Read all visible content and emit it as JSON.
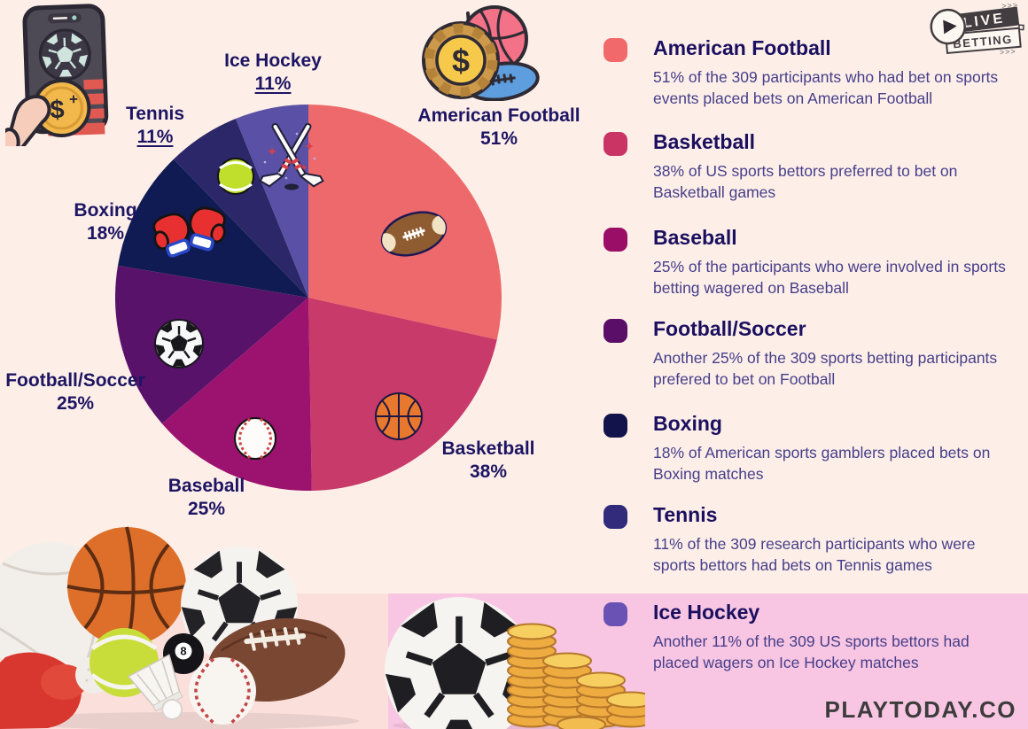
{
  "page": {
    "brand": "PLAYTODAY.CO",
    "colors": {
      "background": "#fdefe8",
      "pink_band": "#f8c6e2",
      "photo_backdrop": "#fbdfdb",
      "heading_text": "#1b1060",
      "body_text": "#453e8a",
      "pie_label_text": "#1d1563",
      "brand_text": "#3c3c3c"
    }
  },
  "badge": {
    "live": "LIVE",
    "betting": "BETTING",
    "arrows_top": ">>>",
    "arrows_bottom": ">>>"
  },
  "decor_text": {
    "chip_symbol": "$",
    "phone_coin_symbol": "$",
    "phone_coin_plus": "+",
    "eight_ball": "8"
  },
  "icons": {
    "decorations": [
      "betting-phone-icon",
      "money-and-balls-icon",
      "live-betting-badge",
      "sports-equipment-photo",
      "soccer-ball-and-coins-photo"
    ],
    "slice_icons": [
      "american-football-icon",
      "basketball-icon",
      "baseball-icon",
      "soccer-ball-icon",
      "boxing-gloves-icon",
      "tennis-ball-icon",
      "ice-hockey-sticks-icon"
    ]
  },
  "chart_data": {
    "type": "pie",
    "value_suffix": "%",
    "slices": [
      {
        "label": "American Football",
        "value": 51,
        "color": "#ee696b",
        "icon": "american-football-icon",
        "underline": false
      },
      {
        "label": "Basketball",
        "value": 38,
        "color": "#c83a69",
        "icon": "basketball-icon",
        "underline": false
      },
      {
        "label": "Baseball",
        "value": 25,
        "color": "#9b136e",
        "icon": "baseball-icon",
        "underline": false
      },
      {
        "label": "Football/Soccer",
        "value": 25,
        "color": "#591269",
        "icon": "soccer-ball-icon",
        "underline": false
      },
      {
        "label": "Boxing",
        "value": 18,
        "color": "#0f1b52",
        "icon": "boxing-gloves-icon",
        "underline": false
      },
      {
        "label": "Tennis",
        "value": 11,
        "color": "#2b2768",
        "icon": "tennis-ball-icon",
        "underline": true
      },
      {
        "label": "Ice Hockey",
        "value": 11,
        "color": "#5a50a5",
        "icon": "ice-hockey-sticks-icon",
        "underline": true
      }
    ]
  },
  "legend": {
    "items": [
      {
        "title": "American Football",
        "swatch_color": "#f1696a",
        "description": "51% of the 309 participants who had bet on sports events placed bets on American Football"
      },
      {
        "title": "Basketball",
        "swatch_color": "#c93464",
        "description": "38% of US sports bettors preferred to bet on Basketball games"
      },
      {
        "title": "Baseball",
        "swatch_color": "#9a0e67",
        "description": "25% of the participants who were involved in sports betting wagered on Baseball"
      },
      {
        "title": "Football/Soccer",
        "swatch_color": "#5a0e68",
        "description": "Another 25% of the 309 sports betting participants prefered to bet on Football"
      },
      {
        "title": "Boxing",
        "swatch_color": "#13134b",
        "description": "18% of American sports gamblers placed bets on Boxing matches"
      },
      {
        "title": "Tennis",
        "swatch_color": "#322a7a",
        "description": "11% of the 309 research participants who were sports bettors had bets on Tennis games"
      },
      {
        "title": "Ice Hockey",
        "swatch_color": "#6a52b4",
        "description": "Another 11% of the 309 US sports bettors had placed wagers on Ice Hockey matches"
      }
    ]
  }
}
